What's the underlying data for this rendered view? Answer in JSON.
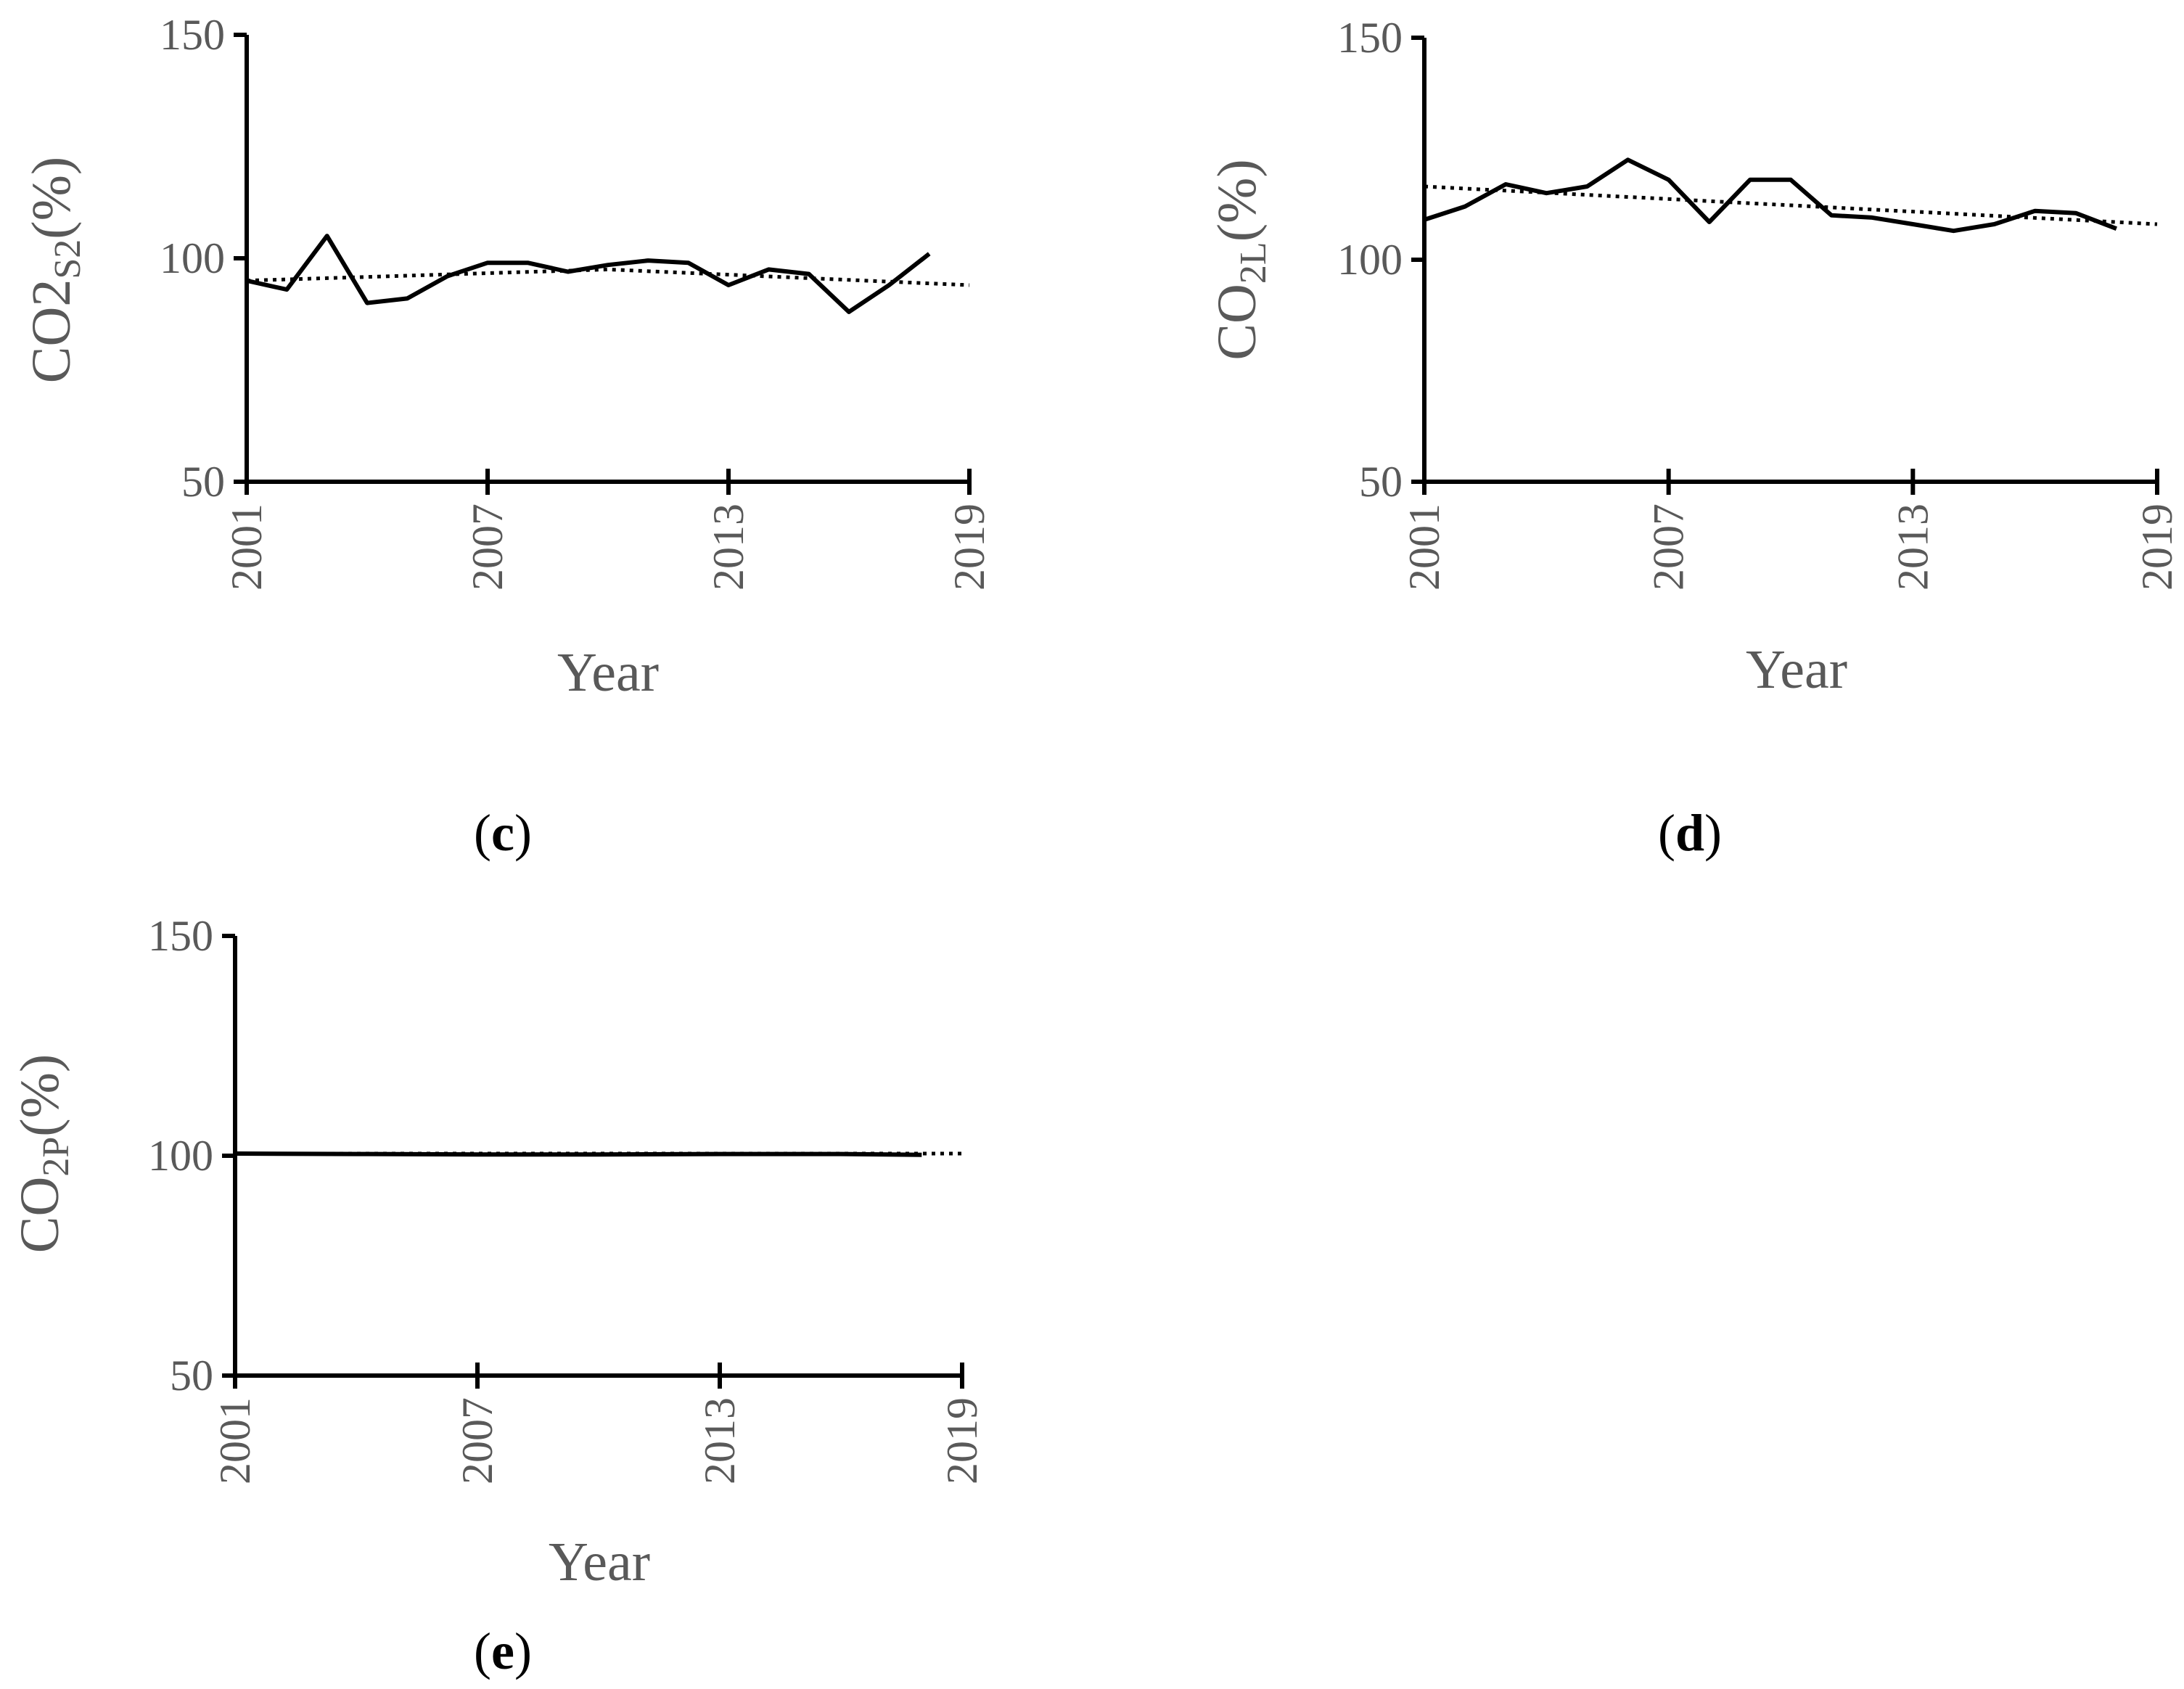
{
  "chart_data": [
    {
      "type": "line",
      "panel": "c",
      "xlabel": "Year",
      "ylabel": "CO2",
      "ylabel_sub": "S2",
      "ylabel_suffix": "(%)",
      "xlim": [
        2001,
        2019
      ],
      "ylim": [
        50,
        150
      ],
      "xticks": [
        "2001",
        "2007",
        "2013",
        "2019"
      ],
      "yticks": [
        "50",
        "100",
        "150"
      ],
      "series": [
        {
          "style": "solid",
          "x": [
            2001,
            2002,
            2003,
            2004,
            2005,
            2006,
            2007,
            2008,
            2009,
            2010,
            2011,
            2012,
            2013,
            2014,
            2015,
            2016,
            2017,
            2018
          ],
          "y": [
            95,
            93,
            105,
            90,
            91,
            96,
            99,
            99,
            97,
            98.5,
            99.5,
            99,
            94,
            97.5,
            96.5,
            88,
            94,
            101
          ]
        },
        {
          "style": "dotted",
          "x": [
            2001,
            2010,
            2019
          ],
          "y": [
            95,
            97.5,
            94
          ]
        }
      ]
    },
    {
      "type": "line",
      "panel": "d",
      "xlabel": "Year",
      "ylabel": "CO",
      "ylabel_sub": "2L",
      "ylabel_suffix": "(%)",
      "xlim": [
        2001,
        2019
      ],
      "ylim": [
        50,
        150
      ],
      "xticks": [
        "2001",
        "2007",
        "2013",
        "2019"
      ],
      "yticks": [
        "50",
        "100",
        "150"
      ],
      "series": [
        {
          "style": "solid",
          "x": [
            2001,
            2002,
            2003,
            2004,
            2005,
            2006,
            2007,
            2008,
            2009,
            2010,
            2011,
            2012,
            2013,
            2014,
            2015,
            2016,
            2017,
            2018
          ],
          "y": [
            109,
            112,
            117,
            115,
            116.5,
            122.5,
            118,
            108.5,
            118,
            118,
            110,
            109.5,
            108,
            106.5,
            108,
            111,
            110.5,
            107
          ]
        },
        {
          "style": "dotted",
          "x": [
            2001,
            2019
          ],
          "y": [
            116.5,
            108
          ]
        }
      ]
    },
    {
      "type": "line",
      "panel": "e",
      "xlabel": "Year",
      "ylabel": "CO",
      "ylabel_sub": "2P",
      "ylabel_suffix": "(%)",
      "xlim": [
        2001,
        2019
      ],
      "ylim": [
        50,
        150
      ],
      "xticks": [
        "2001",
        "2007",
        "2013",
        "2019"
      ],
      "yticks": [
        "50",
        "100",
        "150"
      ],
      "series": [
        {
          "style": "solid",
          "x": [
            2001,
            2004,
            2007,
            2010,
            2013,
            2016,
            2018
          ],
          "y": [
            100.5,
            100.4,
            100.3,
            100.3,
            100.4,
            100.4,
            100.2
          ]
        },
        {
          "style": "dotted",
          "x": [
            2001,
            2019
          ],
          "y": [
            100.5,
            100.5
          ]
        }
      ]
    }
  ],
  "panel_labels": {
    "c": {
      "open": "(",
      "letter": "c",
      "close": ")"
    },
    "d": {
      "open": "(",
      "letter": "d",
      "close": ")"
    },
    "e": {
      "open": "(",
      "letter": "e",
      "close": ")"
    }
  },
  "colors": {
    "line": "#000000",
    "text": "#595959",
    "axis": "#000000"
  }
}
